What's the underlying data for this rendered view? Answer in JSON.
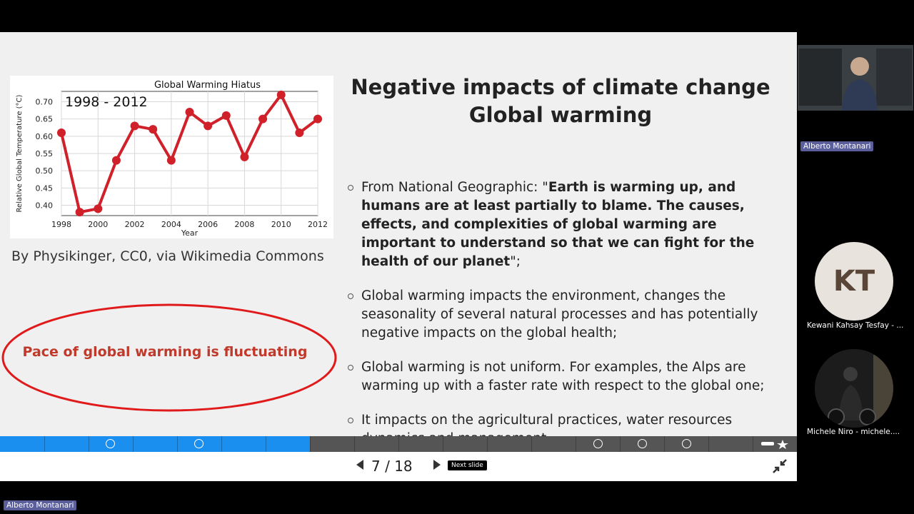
{
  "slide": {
    "title_line1": "Negative impacts of climate change",
    "title_line2": "Global warming",
    "image_credit": "By Physikinger, CC0, via Wikimedia Commons",
    "highlight": "Pace of global warming is fluctuating",
    "bullets": [
      {
        "pre": "From National Geographic: \"",
        "bold": "Earth is warming up, and humans are at least partially to blame. The causes, effects, and complexities of global warming are important to understand so that we can fight for the health of our planet",
        "post": "\";"
      },
      {
        "pre": "Global warming impacts the environment, changes the seasonality of several natural processes and has potentially negative impacts on the global health;",
        "bold": "",
        "post": ""
      },
      {
        "pre": "Global warming is not uniform. For examples, the Alps are warming up with a faster rate with respect to the global one;",
        "bold": "",
        "post": ""
      },
      {
        "pre": "It impacts on the agricultural practices, water resources dynamics and management.",
        "bold": "",
        "post": ""
      }
    ]
  },
  "chart_data": {
    "type": "line",
    "title": "Global Warming Hiatus",
    "annotation": "1998 - 2012",
    "xlabel": "Year",
    "ylabel": "Relative Global Temperature (°C)",
    "x": [
      1998,
      1999,
      2000,
      2001,
      2002,
      2003,
      2004,
      2005,
      2006,
      2007,
      2008,
      2009,
      2010,
      2011,
      2012
    ],
    "values": [
      0.61,
      0.38,
      0.39,
      0.53,
      0.63,
      0.62,
      0.53,
      0.67,
      0.63,
      0.66,
      0.54,
      0.65,
      0.72,
      0.61,
      0.65
    ],
    "xticks": [
      "1998",
      "2000",
      "2002",
      "2004",
      "2006",
      "2008",
      "2010",
      "2012"
    ],
    "yticks": [
      "0.40",
      "0.45",
      "0.50",
      "0.55",
      "0.60",
      "0.65",
      "0.70"
    ],
    "xlim": [
      1998,
      2012
    ],
    "ylim": [
      0.37,
      0.73
    ],
    "grid": true,
    "color": "#d0202a"
  },
  "presentation": {
    "current_page": "7",
    "separator": "/",
    "total_pages": "18",
    "next_tooltip": "Next slide",
    "progress": 0.389,
    "progress_color": "#1a8ff0"
  },
  "participants": {
    "presenter": "Alberto Montanari",
    "p1_initials": "KT",
    "p1_name": "Kewani Kahsay Tesfay - ...",
    "p2_name": "Michele Niro - michele...."
  },
  "footer_label": "Alberto Montanari"
}
